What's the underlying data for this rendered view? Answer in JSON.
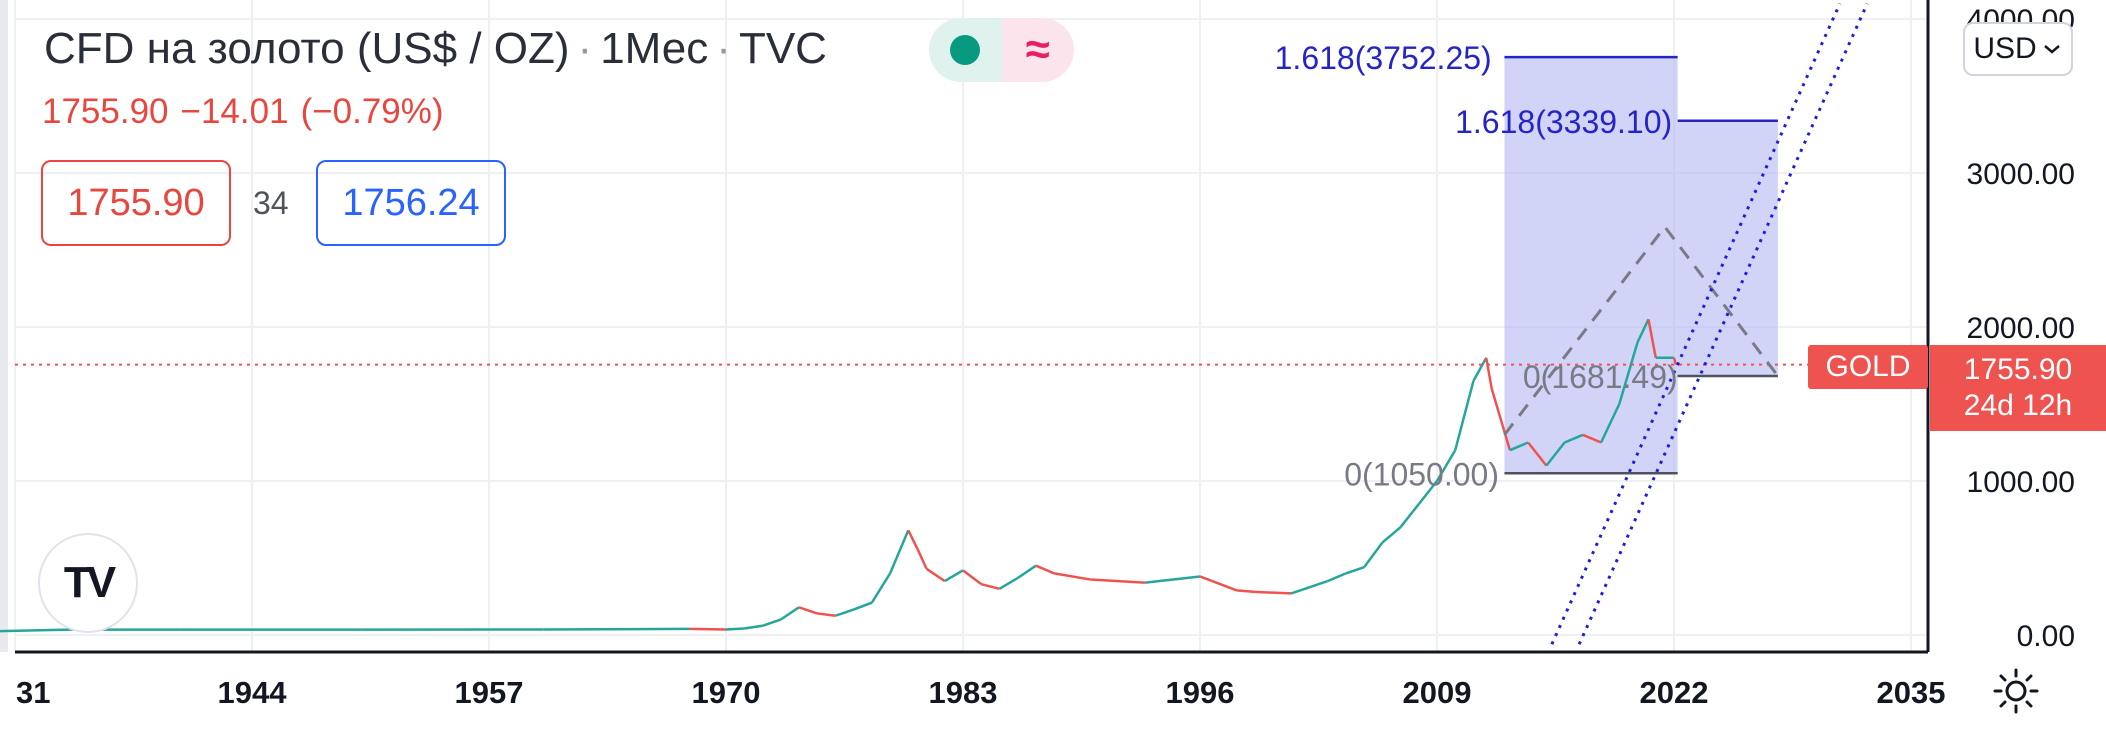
{
  "header": {
    "symbol": "CFD на золото (US$ / OZ)",
    "interval": "1Мес",
    "exchange": "TVC",
    "separator": "·"
  },
  "quote": {
    "last": "1755.90",
    "change": "−14.01",
    "change_pct": "(−0.79%)",
    "sell": "1755.90",
    "spread": "34",
    "buy": "1756.24"
  },
  "toggle": {
    "right_glyph": "≈"
  },
  "currency_button": {
    "label": "USD",
    "icon": "chevron-down-icon"
  },
  "logo": {
    "text": "TV"
  },
  "price_marker": {
    "symbol_tag": "GOLD",
    "price": "1755.90",
    "countdown": "24d 12h"
  },
  "settings": {
    "icon": "sun-icon"
  },
  "colors": {
    "up": "#26a69a",
    "down": "#ef5350",
    "fib_fill": "#b3b8f0",
    "fib_line": "#2424c8",
    "channel": "#1e1ed8",
    "pattern": "#787b86",
    "axis_text": "#131722"
  },
  "chart_data": {
    "type": "line",
    "title": "CFD на золото (US$ / OZ)",
    "x_ticks": [
      "31",
      "1944",
      "1957",
      "1970",
      "1983",
      "1996",
      "2009",
      "2022",
      "2035"
    ],
    "y_ticks": [
      "0.00",
      "1000.00",
      "2000.00",
      "3000.00",
      "4000.00"
    ],
    "xlim": [
      1928,
      2036
    ],
    "ylim": [
      0,
      4000
    ],
    "series": [
      {
        "x": [
          1928,
          1934,
          1940,
          1950,
          1960,
          1968,
          1970,
          1971,
          1972,
          1973,
          1974,
          1975,
          1976,
          1977,
          1978,
          1979,
          1980,
          1980.5,
          1981,
          1982,
          1983,
          1984,
          1985,
          1986,
          1987,
          1988,
          1990,
          1993,
          1996,
          1998,
          1999,
          2001,
          2002,
          2003,
          2004,
          2005,
          2006,
          2007,
          2008,
          2009,
          2010,
          2011,
          2011.7,
          2012,
          2013,
          2014,
          2015,
          2016,
          2017,
          2018,
          2019,
          2020,
          2020.6,
          2021,
          2022,
          2022.1
        ],
        "y": [
          20,
          35,
          35,
          35,
          36,
          40,
          36,
          42,
          60,
          100,
          180,
          140,
          125,
          165,
          210,
          400,
          680,
          560,
          430,
          350,
          420,
          330,
          300,
          370,
          450,
          400,
          360,
          340,
          380,
          290,
          280,
          270,
          310,
          350,
          400,
          440,
          600,
          700,
          850,
          1000,
          1200,
          1650,
          1800,
          1600,
          1200,
          1250,
          1100,
          1250,
          1300,
          1250,
          1500,
          1900,
          2050,
          1800,
          1800,
          1756
        ]
      }
    ],
    "annotations": [
      {
        "label": "1.618(3752.25)",
        "value": 3752.25
      },
      {
        "label": "1.618(3339.10)",
        "value": 3339.1
      },
      {
        "label": "0(1681.49)",
        "value": 1681.49
      },
      {
        "label": "0(1050.00)",
        "value": 1050.0
      }
    ],
    "current_price": 1755.9
  }
}
